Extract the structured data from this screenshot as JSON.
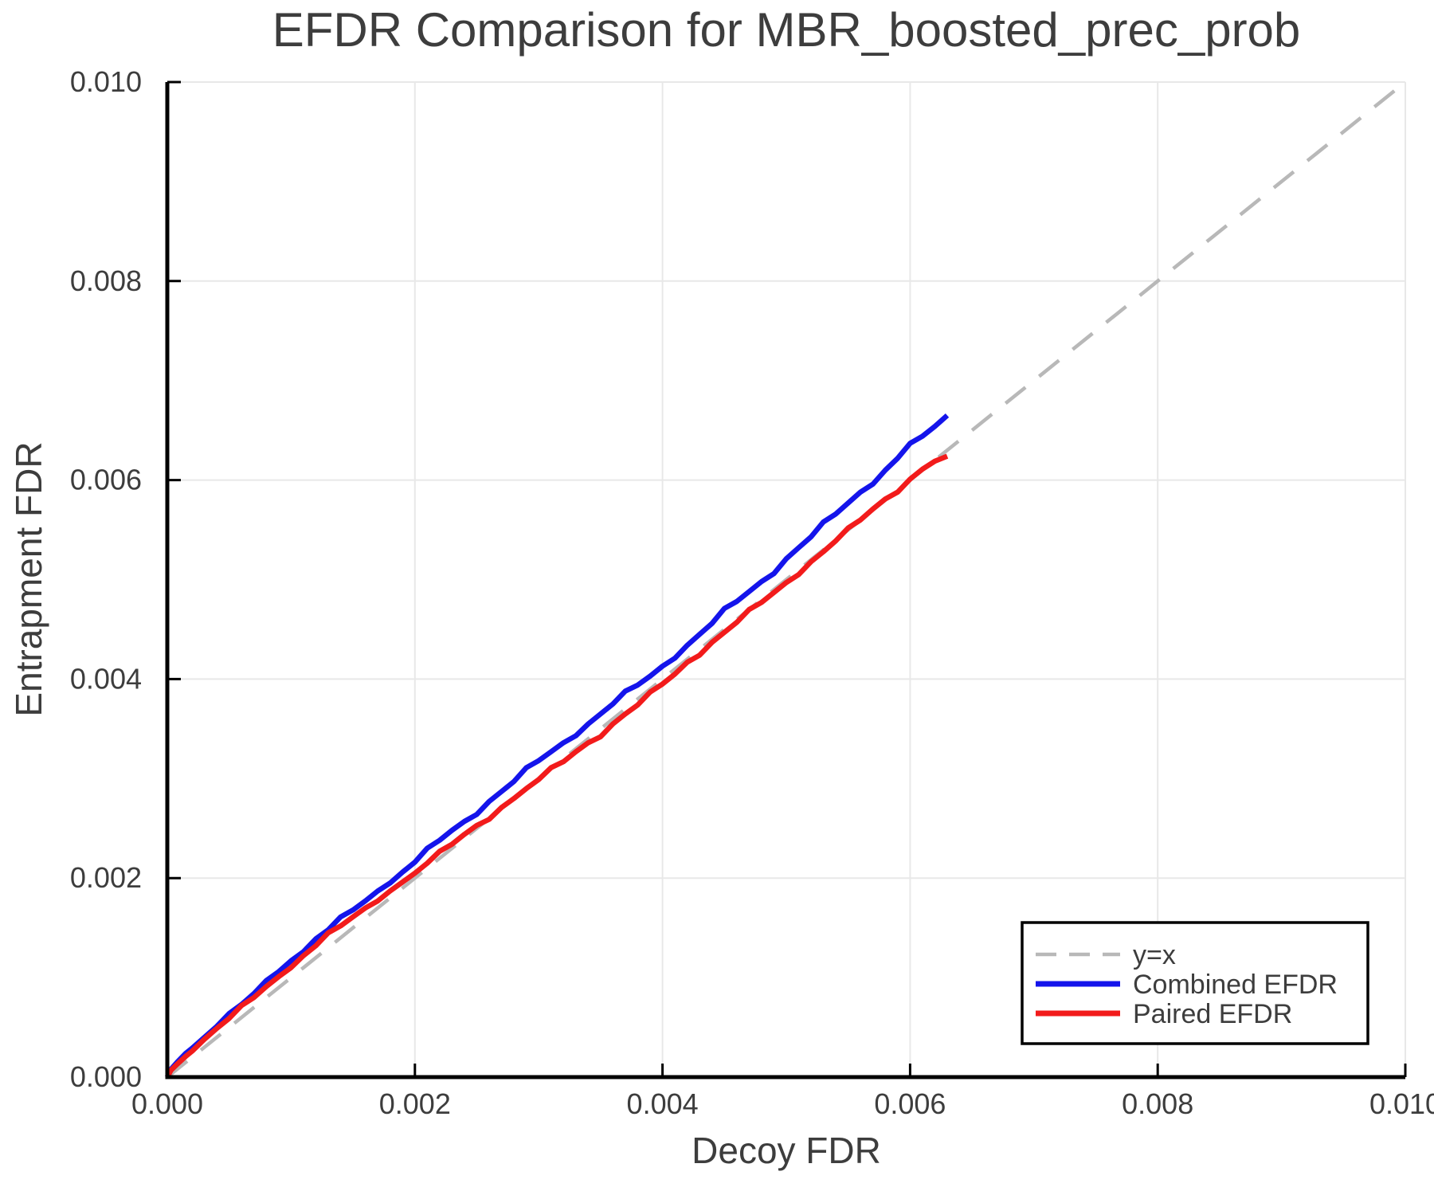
{
  "page": {
    "background": "#ffffff"
  },
  "chart_data": {
    "type": "line",
    "title": "EFDR Comparison for MBR_boosted_prec_prob",
    "xlabel": "Decoy FDR",
    "ylabel": "Entrapment FDR",
    "xlim": [
      0.0,
      0.01
    ],
    "ylim": [
      0.0,
      0.01
    ],
    "xtick_labels": [
      "0.000",
      "0.002",
      "0.004",
      "0.006",
      "0.008",
      "0.010"
    ],
    "ytick_labels": [
      "0.000",
      "0.002",
      "0.004",
      "0.006",
      "0.008",
      "0.010"
    ],
    "grid": true,
    "legend_position": "lower right",
    "style": {
      "grid_color": "#e8e8e8",
      "spine_color": "#000000",
      "text_color": "#3d3d3d",
      "legend_border_color": "#000000",
      "legend_fill": "#ffffff"
    },
    "x": [
      0,
      3e-05,
      8e-05,
      0.00015,
      0.0002,
      0.0003,
      0.0004,
      0.0005,
      0.0006,
      0.0007,
      0.0008,
      0.0009,
      0.001,
      0.0011,
      0.0012,
      0.0013,
      0.0014,
      0.0015,
      0.0016,
      0.0017,
      0.0018,
      0.0019,
      0.002,
      0.0021,
      0.0022,
      0.0023,
      0.0024,
      0.0025,
      0.0026,
      0.0027,
      0.0028,
      0.0029,
      0.003,
      0.0031,
      0.0032,
      0.0033,
      0.0034,
      0.0035,
      0.0036,
      0.0037,
      0.0038,
      0.0039,
      0.004,
      0.0041,
      0.0042,
      0.0043,
      0.0044,
      0.0045,
      0.0046,
      0.0047,
      0.0048,
      0.0049,
      0.005,
      0.0051,
      0.0052,
      0.0053,
      0.0054,
      0.0055,
      0.0056,
      0.0057,
      0.0058,
      0.0059,
      0.006,
      0.0061,
      0.0062,
      0.0063
    ],
    "series": [
      {
        "name": "y=x",
        "role": "reference",
        "dashed": true,
        "color": "#b8b8b8",
        "x": [
          0.0,
          0.01
        ],
        "y": [
          0.0,
          0.01
        ]
      },
      {
        "name": "Combined EFDR",
        "role": "data",
        "dashed": false,
        "color": "#1414eb",
        "y": [
          0,
          8e-05,
          0.00015,
          0.00024,
          0.00029,
          0.0004,
          0.00051,
          0.00064,
          0.00073,
          0.00084,
          0.00097,
          0.00106,
          0.00117,
          0.00126,
          0.00139,
          0.00148,
          0.00161,
          0.00168,
          0.00177,
          0.00187,
          0.00195,
          0.00206,
          0.00216,
          0.0023,
          0.00238,
          0.00248,
          0.00257,
          0.00264,
          0.00277,
          0.00287,
          0.00297,
          0.00311,
          0.00318,
          0.00327,
          0.00336,
          0.00343,
          0.00355,
          0.00365,
          0.00375,
          0.00388,
          0.00394,
          0.00403,
          0.00413,
          0.00421,
          0.00434,
          0.00445,
          0.00456,
          0.00471,
          0.00478,
          0.00488,
          0.00498,
          0.00506,
          0.00521,
          0.00532,
          0.00543,
          0.00558,
          0.00566,
          0.00577,
          0.00588,
          0.00596,
          0.0061,
          0.00622,
          0.00637,
          0.00644,
          0.00654,
          0.00665
        ]
      },
      {
        "name": "Paired EFDR",
        "role": "data",
        "dashed": false,
        "color": "#f21b1b",
        "y": [
          0,
          7e-05,
          0.00013,
          0.00021,
          0.00026,
          0.00038,
          0.00049,
          0.00059,
          0.00072,
          0.0008,
          0.00091,
          0.00101,
          0.0011,
          0.00122,
          0.00132,
          0.00145,
          0.00152,
          0.00161,
          0.0017,
          0.00177,
          0.00187,
          0.00196,
          0.00205,
          0.00215,
          0.00227,
          0.00234,
          0.00244,
          0.00253,
          0.00259,
          0.00271,
          0.0028,
          0.0029,
          0.00299,
          0.00311,
          0.00317,
          0.00327,
          0.00336,
          0.00342,
          0.00355,
          0.00365,
          0.00374,
          0.00387,
          0.00395,
          0.00405,
          0.00417,
          0.00424,
          0.00437,
          0.00447,
          0.00457,
          0.0047,
          0.00477,
          0.00487,
          0.00497,
          0.00505,
          0.00518,
          0.00528,
          0.00539,
          0.00552,
          0.0056,
          0.00571,
          0.00581,
          0.00588,
          0.00601,
          0.00611,
          0.00619,
          0.00624
        ]
      }
    ]
  }
}
